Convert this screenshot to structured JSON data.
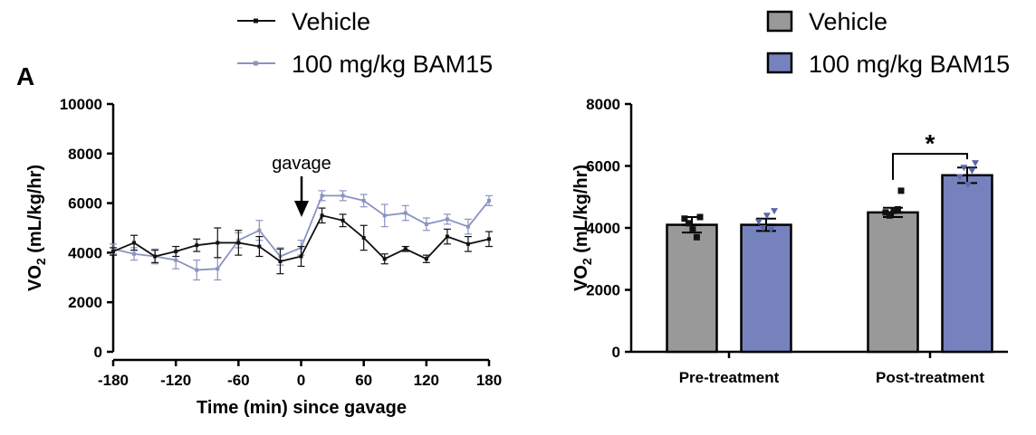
{
  "figure": {
    "panel_label": "A",
    "annotation": "gavage",
    "significance": "*"
  },
  "colors": {
    "vehicle_line": "#111111",
    "bam15_line": "#8a93c2",
    "vehicle_bar": "#999999",
    "bam15_bar": "#7682bd"
  },
  "chart_data": [
    {
      "type": "line",
      "xlabel": "Time (min) since gavage",
      "ylabel": {
        "main": "VO",
        "sub": "2",
        "rest": " (mL/kg/hr)"
      },
      "xlim": [
        -180,
        180
      ],
      "ylim": [
        0,
        10000
      ],
      "xticks": [
        -180,
        -120,
        -60,
        0,
        60,
        120,
        180
      ],
      "yticks": [
        0,
        2000,
        4000,
        6000,
        8000,
        10000
      ],
      "legend_position": "top",
      "series": [
        {
          "name": "Vehicle",
          "x": [
            -180,
            -160,
            -140,
            -120,
            -100,
            -80,
            -60,
            -40,
            -20,
            0,
            20,
            40,
            60,
            80,
            100,
            120,
            140,
            160,
            180
          ],
          "y": [
            4050,
            4400,
            3850,
            4050,
            4300,
            4400,
            4400,
            4250,
            3650,
            3850,
            5500,
            5300,
            4600,
            3750,
            4150,
            3750,
            4650,
            4350,
            4550
          ],
          "err": [
            150,
            300,
            250,
            200,
            250,
            600,
            500,
            400,
            500,
            400,
            300,
            250,
            500,
            200,
            100,
            150,
            300,
            300,
            300
          ]
        },
        {
          "name": "100 mg/kg BAM15",
          "x": [
            -180,
            -160,
            -140,
            -120,
            -100,
            -80,
            -60,
            -40,
            -20,
            0,
            20,
            40,
            60,
            80,
            100,
            120,
            140,
            160,
            180
          ],
          "y": [
            4150,
            3950,
            3850,
            3700,
            3300,
            3350,
            4500,
            4900,
            3850,
            4200,
            6300,
            6300,
            6100,
            5500,
            5600,
            5150,
            5350,
            5050,
            6100
          ],
          "err": [
            200,
            250,
            300,
            350,
            400,
            450,
            300,
            400,
            350,
            300,
            200,
            200,
            250,
            450,
            300,
            250,
            200,
            300,
            200
          ]
        }
      ]
    },
    {
      "type": "bar",
      "ylabel": {
        "main": "VO",
        "sub": "2",
        "rest": " (mL/kg/hr)"
      },
      "ylim": [
        0,
        8000
      ],
      "yticks": [
        0,
        2000,
        4000,
        6000,
        8000
      ],
      "categories": [
        "Pre-treatment",
        "Post-treatment"
      ],
      "legend_position": "top",
      "series": [
        {
          "name": "Vehicle",
          "values": [
            4100,
            4500
          ],
          "err": [
            250,
            150
          ],
          "points": [
            [
              4300,
              4150,
              3950,
              3700,
              4350
            ],
            [
              4500,
              4400,
              4550,
              4600,
              5200
            ]
          ]
        },
        {
          "name": "100 mg/kg BAM15",
          "values": [
            4100,
            5700
          ],
          "err": [
            200,
            250
          ],
          "points": [
            [
              4200,
              4000,
              4400,
              3950,
              4550
            ],
            [
              5650,
              5950,
              5400,
              5850,
              6100
            ]
          ]
        }
      ],
      "significance": {
        "category": "Post-treatment",
        "label": "*"
      }
    }
  ]
}
